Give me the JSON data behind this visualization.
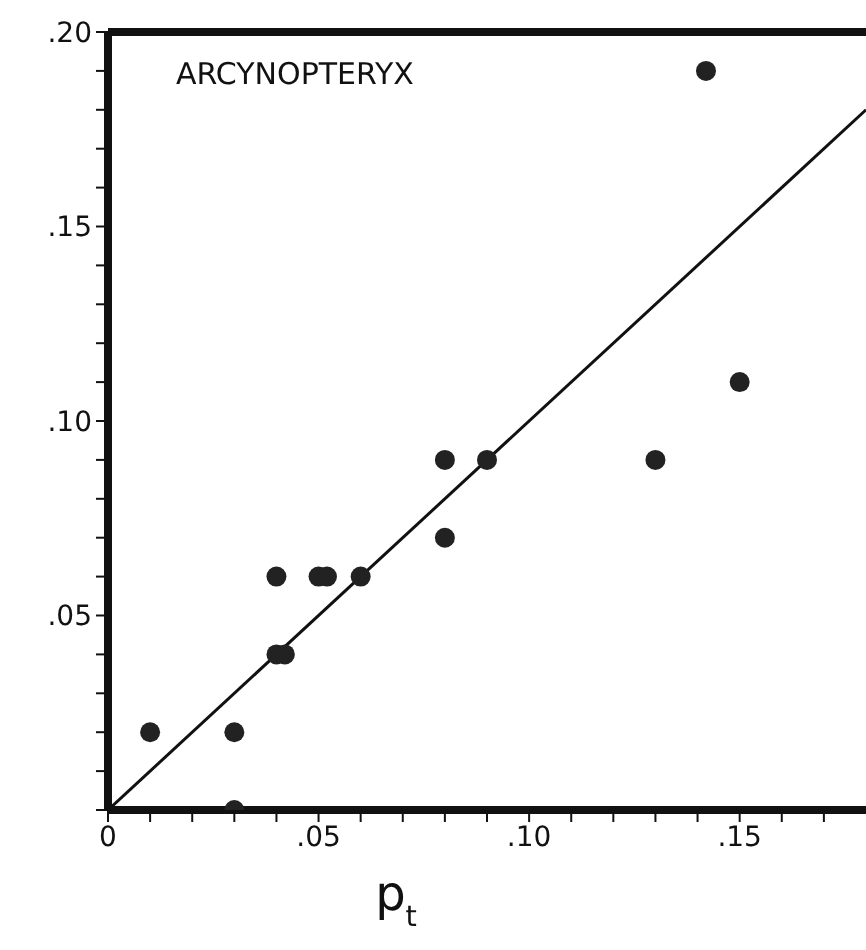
{
  "chart_data": {
    "type": "scatter",
    "title": "ARCYNOPTERYX",
    "xlabel": "p$_{t}$",
    "marker": "circle",
    "grid": false,
    "legend": false,
    "xlim": [
      0,
      0.18
    ],
    "ylim": [
      0,
      0.2
    ],
    "xticks": [
      {
        "value": 0,
        "label": "0"
      },
      {
        "value": 0.01,
        "label": null
      },
      {
        "value": 0.02,
        "label": null
      },
      {
        "value": 0.03,
        "label": null
      },
      {
        "value": 0.04,
        "label": null
      },
      {
        "value": 0.05,
        "label": ".05"
      },
      {
        "value": 0.06,
        "label": null
      },
      {
        "value": 0.07,
        "label": null
      },
      {
        "value": 0.08,
        "label": null
      },
      {
        "value": 0.09,
        "label": null
      },
      {
        "value": 0.1,
        "label": ".10"
      },
      {
        "value": 0.11,
        "label": null
      },
      {
        "value": 0.12,
        "label": null
      },
      {
        "value": 0.13,
        "label": null
      },
      {
        "value": 0.14,
        "label": null
      },
      {
        "value": 0.15,
        "label": ".15"
      },
      {
        "value": 0.16,
        "label": null
      },
      {
        "value": 0.17,
        "label": null
      }
    ],
    "yticks": [
      {
        "value": 0,
        "label": null
      },
      {
        "value": 0.01,
        "label": null
      },
      {
        "value": 0.02,
        "label": null
      },
      {
        "value": 0.03,
        "label": null
      },
      {
        "value": 0.04,
        "label": null
      },
      {
        "value": 0.05,
        "label": ".05"
      },
      {
        "value": 0.06,
        "label": null
      },
      {
        "value": 0.07,
        "label": null
      },
      {
        "value": 0.08,
        "label": null
      },
      {
        "value": 0.09,
        "label": null
      },
      {
        "value": 0.1,
        "label": ".10"
      },
      {
        "value": 0.11,
        "label": null
      },
      {
        "value": 0.12,
        "label": null
      },
      {
        "value": 0.13,
        "label": null
      },
      {
        "value": 0.14,
        "label": null
      },
      {
        "value": 0.15,
        "label": ".15"
      },
      {
        "value": 0.16,
        "label": null
      },
      {
        "value": 0.17,
        "label": null
      },
      {
        "value": 0.18,
        "label": null
      },
      {
        "value": 0.19,
        "label": null
      },
      {
        "value": 0.2,
        "label": ".20"
      }
    ],
    "series": [
      {
        "color": "#222222",
        "x": [
          0.01,
          0.03,
          0.03,
          0.04,
          0.04,
          0.042,
          0.05,
          0.052,
          0.06,
          0.08,
          0.09,
          0.08,
          0.13,
          0.142,
          0.15
        ],
        "values": [
          0.02,
          0.02,
          0,
          0.06,
          0.04,
          0.04,
          0.06,
          0.06,
          0.06,
          0.09,
          0.09,
          0.07,
          0.09,
          0.19,
          0.11
        ]
      },
      {
        "type": "line",
        "marker": "none",
        "color": "#111111",
        "x": [
          0,
          0.18
        ],
        "values": [
          0,
          0.18
        ]
      }
    ]
  }
}
